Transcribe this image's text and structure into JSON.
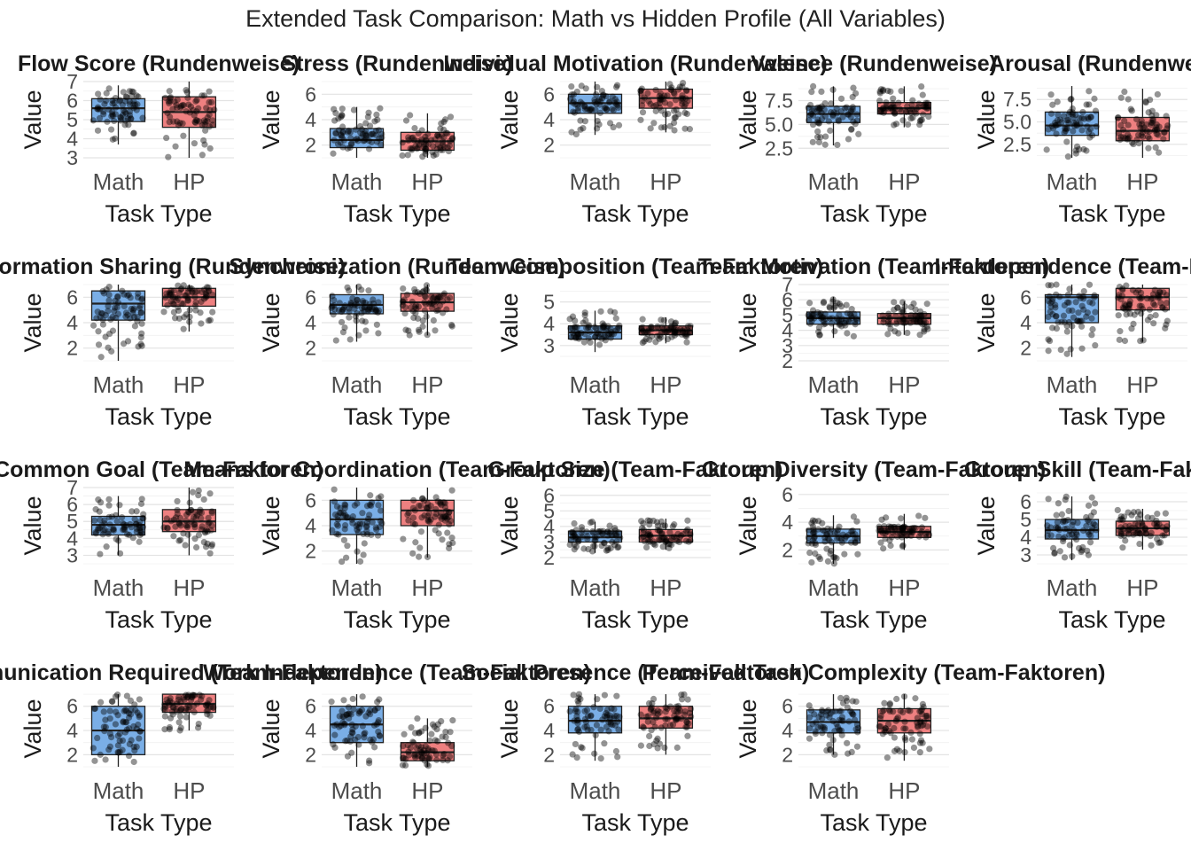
{
  "title": "Extended Task Comparison: Math vs Hidden Profile (All Variables)",
  "colors": {
    "math": "#7aaee6",
    "hp": "#ee8080"
  },
  "chart_data": {
    "type": "boxplot",
    "categories": [
      "Math",
      "HP"
    ],
    "xlabel": "Task Type",
    "ylabel": "Value",
    "panels": [
      {
        "title": "Flow Score (Rundenweise)",
        "ylim": [
          3,
          7
        ],
        "yticks": [
          3,
          4,
          5,
          6,
          7
        ],
        "boxes": [
          {
            "group": "Math",
            "q1": 4.9,
            "median": 5.6,
            "q3": 6.1,
            "min": 3.7,
            "max": 6.8
          },
          {
            "group": "HP",
            "q1": 4.6,
            "median": 5.4,
            "q3": 6.2,
            "min": 3.0,
            "max": 7.0
          }
        ]
      },
      {
        "title": "Stress (Rundenweise)",
        "ylim": [
          1,
          7
        ],
        "yticks": [
          2,
          4,
          6
        ],
        "boxes": [
          {
            "group": "Math",
            "q1": 1.8,
            "median": 2.4,
            "q3": 3.3,
            "min": 1.0,
            "max": 5.0
          },
          {
            "group": "HP",
            "q1": 1.6,
            "median": 2.3,
            "q3": 3.0,
            "min": 1.0,
            "max": 4.5
          }
        ]
      },
      {
        "title": "Individual Motivation (Rundenweise)",
        "ylim": [
          1,
          7
        ],
        "yticks": [
          2,
          4,
          6
        ],
        "boxes": [
          {
            "group": "Math",
            "q1": 4.5,
            "median": 5.3,
            "q3": 6.0,
            "min": 2.8,
            "max": 7.0
          },
          {
            "group": "HP",
            "q1": 4.9,
            "median": 5.7,
            "q3": 6.4,
            "min": 3.0,
            "max": 7.0
          }
        ]
      },
      {
        "title": "Valence (Rundenweise)",
        "ylim": [
          1.5,
          9.5
        ],
        "yticks": [
          2.5,
          5.0,
          7.5
        ],
        "boxes": [
          {
            "group": "Math",
            "q1": 5.2,
            "median": 6.1,
            "q3": 6.9,
            "min": 2.8,
            "max": 9.0
          },
          {
            "group": "HP",
            "q1": 6.1,
            "median": 6.7,
            "q3": 7.3,
            "min": 4.7,
            "max": 9.0
          }
        ]
      },
      {
        "title": "Arousal (Rundenweise)",
        "ylim": [
          1,
          9.5
        ],
        "yticks": [
          2.5,
          5.0,
          7.5
        ],
        "boxes": [
          {
            "group": "Math",
            "q1": 3.5,
            "median": 4.6,
            "q3": 6.1,
            "min": 1.0,
            "max": 9.0
          },
          {
            "group": "HP",
            "q1": 2.9,
            "median": 4.0,
            "q3": 5.5,
            "min": 1.0,
            "max": 8.7
          }
        ]
      },
      {
        "title": "Information Sharing (Rundenweise)",
        "ylim": [
          1,
          7
        ],
        "yticks": [
          2,
          4,
          6
        ],
        "boxes": [
          {
            "group": "Math",
            "q1": 4.2,
            "median": 5.5,
            "q3": 6.5,
            "min": 1.0,
            "max": 7.0
          },
          {
            "group": "HP",
            "q1": 5.3,
            "median": 6.0,
            "q3": 6.7,
            "min": 3.3,
            "max": 7.0
          }
        ]
      },
      {
        "title": "Synchronization (Rundenweise)",
        "ylim": [
          1,
          7
        ],
        "yticks": [
          2,
          4,
          6
        ],
        "boxes": [
          {
            "group": "Math",
            "q1": 4.7,
            "median": 5.4,
            "q3": 6.2,
            "min": 2.5,
            "max": 7.0
          },
          {
            "group": "HP",
            "q1": 4.9,
            "median": 5.6,
            "q3": 6.3,
            "min": 3.0,
            "max": 7.0
          }
        ]
      },
      {
        "title": "Team Composition (Team-Faktoren)",
        "ylim": [
          2.3,
          5.8
        ],
        "yticks": [
          3,
          4,
          5
        ],
        "boxes": [
          {
            "group": "Math",
            "q1": 3.3,
            "median": 3.6,
            "q3": 3.9,
            "min": 2.7,
            "max": 4.6
          },
          {
            "group": "HP",
            "q1": 3.5,
            "median": 3.7,
            "q3": 3.9,
            "min": 3.1,
            "max": 4.3
          }
        ]
      },
      {
        "title": "Team Motivation (Team-Faktoren)",
        "ylim": [
          2,
          7
        ],
        "yticks": [
          2,
          3,
          4,
          5,
          6,
          7
        ],
        "boxes": [
          {
            "group": "Math",
            "q1": 4.4,
            "median": 4.8,
            "q3": 5.2,
            "min": 3.5,
            "max": 6.2
          },
          {
            "group": "HP",
            "q1": 4.4,
            "median": 4.8,
            "q3": 5.1,
            "min": 3.7,
            "max": 5.9
          }
        ]
      },
      {
        "title": "Interdependence (Team-Faktoren)",
        "ylim": [
          1,
          7
        ],
        "yticks": [
          2,
          4,
          6
        ],
        "boxes": [
          {
            "group": "Math",
            "q1": 4.0,
            "median": 6.0,
            "q3": 6.2,
            "min": 1.3,
            "max": 7.0
          },
          {
            "group": "HP",
            "q1": 5.0,
            "median": 6.0,
            "q3": 6.7,
            "min": 2.5,
            "max": 7.0
          }
        ]
      },
      {
        "title": "Common Goal (Team-Faktoren)",
        "ylim": [
          2.5,
          7
        ],
        "yticks": [
          3,
          4,
          5,
          6,
          7
        ],
        "boxes": [
          {
            "group": "Math",
            "q1": 4.2,
            "median": 4.8,
            "q3": 5.3,
            "min": 3.0,
            "max": 6.5
          },
          {
            "group": "HP",
            "q1": 4.4,
            "median": 5.0,
            "q3": 5.7,
            "min": 3.0,
            "max": 7.0
          }
        ]
      },
      {
        "title": "Means for Coordination (Team-Faktoren)",
        "ylim": [
          1,
          7
        ],
        "yticks": [
          2,
          4,
          6
        ],
        "boxes": [
          {
            "group": "Math",
            "q1": 3.3,
            "median": 4.5,
            "q3": 6.0,
            "min": 1.0,
            "max": 7.0
          },
          {
            "group": "HP",
            "q1": 4.0,
            "median": 5.2,
            "q3": 6.0,
            "min": 1.5,
            "max": 7.0
          }
        ]
      },
      {
        "title": "Group Size (Team-Faktoren)",
        "ylim": [
          1.6,
          6.5
        ],
        "yticks": [
          2,
          3,
          4,
          5,
          6
        ],
        "boxes": [
          {
            "group": "Math",
            "q1": 3.0,
            "median": 3.3,
            "q3": 3.7,
            "min": 2.3,
            "max": 4.3
          },
          {
            "group": "HP",
            "q1": 3.0,
            "median": 3.4,
            "q3": 3.8,
            "min": 2.5,
            "max": 4.5
          }
        ]
      },
      {
        "title": "Group Diversity (Team-Faktoren)",
        "ylim": [
          1,
          6.5
        ],
        "yticks": [
          2,
          4,
          6
        ],
        "boxes": [
          {
            "group": "Math",
            "q1": 2.5,
            "median": 3.0,
            "q3": 3.5,
            "min": 1.0,
            "max": 4.5
          },
          {
            "group": "HP",
            "q1": 2.9,
            "median": 3.3,
            "q3": 3.7,
            "min": 2.0,
            "max": 4.6
          }
        ]
      },
      {
        "title": "Group Skill (Team-Faktoren)",
        "ylim": [
          2.5,
          6.8
        ],
        "yticks": [
          3,
          4,
          5,
          6
        ],
        "boxes": [
          {
            "group": "Math",
            "q1": 3.9,
            "median": 4.4,
            "q3": 5.0,
            "min": 2.7,
            "max": 6.3
          },
          {
            "group": "HP",
            "q1": 4.1,
            "median": 4.5,
            "q3": 4.9,
            "min": 3.3,
            "max": 5.6
          }
        ]
      },
      {
        "title": "Communication Required (Team-Faktoren)",
        "ylim": [
          1,
          7.3
        ],
        "yticks": [
          2,
          4,
          6
        ],
        "boxes": [
          {
            "group": "Math",
            "q1": 2.0,
            "median": 4.0,
            "q3": 6.0,
            "min": 1.0,
            "max": 7.0
          },
          {
            "group": "HP",
            "q1": 5.5,
            "median": 6.2,
            "q3": 7.0,
            "min": 4.0,
            "max": 7.0
          }
        ]
      },
      {
        "title": "Work Independence (Team-Faktoren)",
        "ylim": [
          1,
          7.3
        ],
        "yticks": [
          2,
          4,
          6
        ],
        "boxes": [
          {
            "group": "Math",
            "q1": 3.0,
            "median": 4.5,
            "q3": 6.0,
            "min": 1.0,
            "max": 7.0
          },
          {
            "group": "HP",
            "q1": 1.5,
            "median": 2.2,
            "q3": 3.0,
            "min": 1.0,
            "max": 5.0
          }
        ]
      },
      {
        "title": "Social Presence (Team-Faktoren)",
        "ylim": [
          1,
          7.3
        ],
        "yticks": [
          2,
          4,
          6
        ],
        "boxes": [
          {
            "group": "Math",
            "q1": 3.8,
            "median": 4.8,
            "q3": 6.0,
            "min": 1.5,
            "max": 7.0
          },
          {
            "group": "HP",
            "q1": 4.2,
            "median": 5.0,
            "q3": 6.0,
            "min": 2.0,
            "max": 7.0
          }
        ]
      },
      {
        "title": "Perceived Task Complexity (Team-Faktoren)",
        "ylim": [
          1,
          7.3
        ],
        "yticks": [
          2,
          4,
          6
        ],
        "boxes": [
          {
            "group": "Math",
            "q1": 3.8,
            "median": 4.7,
            "q3": 5.7,
            "min": 2.0,
            "max": 7.0
          },
          {
            "group": "HP",
            "q1": 3.8,
            "median": 4.8,
            "q3": 5.8,
            "min": 1.5,
            "max": 7.0
          }
        ]
      }
    ]
  }
}
